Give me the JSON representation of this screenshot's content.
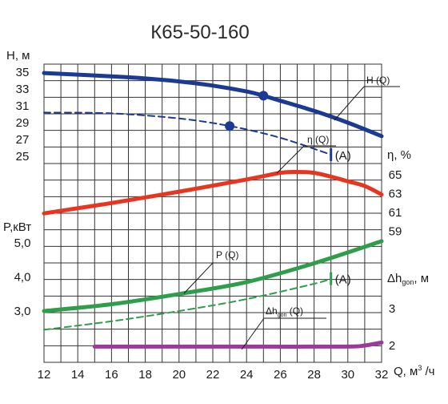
{
  "chart_data": {
    "type": "line",
    "title": "К65-50-160",
    "x_axis": {
      "label": "Q, м³/ч",
      "ticks": [
        12,
        14,
        16,
        18,
        20,
        22,
        24,
        26,
        28,
        30,
        32
      ],
      "range": [
        12,
        32
      ]
    },
    "axes": {
      "H": {
        "label": "H, м",
        "ticks": [
          25,
          27,
          29,
          31,
          33,
          35
        ]
      },
      "eta": {
        "label": "η, %",
        "ticks": [
          59,
          61,
          63,
          65
        ]
      },
      "P": {
        "label": "P,кВт",
        "ticks": [
          "3,0",
          "4,0",
          "5,0"
        ]
      },
      "dh": {
        "label": "Δh_gon, м",
        "ticks": [
          2,
          3
        ]
      }
    },
    "series": [
      {
        "name": "H (Q)",
        "axis": "H",
        "color": "#1b3a93",
        "style": "solid",
        "x": [
          12,
          14,
          16,
          18,
          20,
          22,
          24,
          25,
          26,
          28,
          30,
          32
        ],
        "y": [
          34.9,
          34.7,
          34.5,
          34.25,
          33.9,
          33.4,
          32.7,
          32.2,
          31.6,
          30.4,
          29.0,
          27.4
        ]
      },
      {
        "name": "",
        "axis": "H",
        "color": "#1b3a93",
        "style": "dashed",
        "x": [
          12,
          16,
          20,
          23,
          26,
          29
        ],
        "y": [
          30.2,
          30.1,
          29.5,
          28.6,
          27.2,
          25.2
        ]
      },
      {
        "name": "η (Q)",
        "axis": "eta",
        "color": "#e8351f",
        "style": "solid",
        "x": [
          12,
          16,
          20,
          24,
          26,
          27,
          28,
          29,
          30,
          31,
          32
        ],
        "y": [
          60.9,
          62.0,
          63.2,
          64.5,
          65.2,
          65.3,
          65.2,
          64.8,
          64.3,
          63.8,
          62.9
        ]
      },
      {
        "name": "P (Q)",
        "axis": "P",
        "color": "#2e9e4a",
        "style": "solid",
        "x": [
          12,
          16,
          20,
          24,
          28,
          32
        ],
        "y": [
          3.0,
          3.2,
          3.5,
          3.85,
          4.4,
          5.05
        ]
      },
      {
        "name": "",
        "axis": "P",
        "color": "#2e9e4a",
        "style": "dashed",
        "x": [
          12,
          16,
          20,
          24,
          28,
          29
        ],
        "y": [
          2.45,
          2.7,
          3.0,
          3.35,
          3.8,
          3.95
        ]
      },
      {
        "name": "Δh_gon (Q)",
        "axis": "dh",
        "color": "#9b3a9a",
        "style": "solid",
        "x": [
          15,
          20,
          25,
          30,
          31,
          32
        ],
        "y": [
          1.97,
          1.97,
          1.97,
          1.97,
          2.0,
          2.08
        ]
      }
    ],
    "markers": [
      {
        "series": "H (Q)",
        "x": 25,
        "y": 32.2
      },
      {
        "series": "H (Q) dashed",
        "x": 23,
        "y": 28.6
      }
    ],
    "annotations": [
      {
        "text": "(A)",
        "x": 29,
        "axis": "H",
        "color": "#1b3a93"
      },
      {
        "text": "(A)",
        "x": 29,
        "axis": "P",
        "color": "#2e9e4a"
      }
    ],
    "grid": true
  }
}
